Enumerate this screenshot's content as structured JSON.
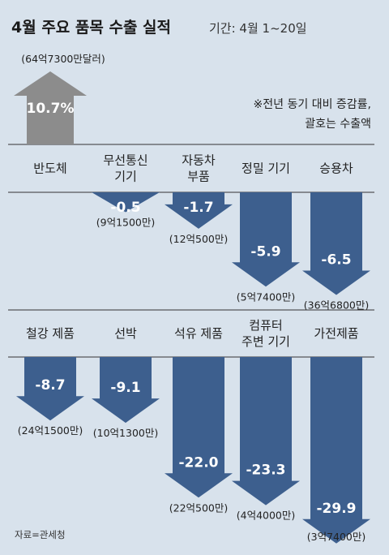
{
  "header": {
    "title": "4월 주요 품목 수출 실적",
    "period": "기간: 4월 1~20일"
  },
  "note": {
    "line1": "※전년 동기 대비 증감률,",
    "line2": "괄호는 수출액"
  },
  "source": "자료=관세청",
  "colors": {
    "background": "#d8e2ec",
    "negative_arrow": "#3d5f8e",
    "positive_arrow": "#8c8c8c"
  },
  "chart_data": [
    {
      "type": "bar",
      "orientation": "arrows",
      "unit": "%",
      "categories": [
        [
          "반도체"
        ],
        [
          "무선통신",
          "기기"
        ],
        [
          "자동차",
          "부품"
        ],
        [
          "정밀 기기"
        ],
        [
          "승용차"
        ]
      ],
      "values": [
        10.7,
        -0.5,
        -1.7,
        -5.9,
        -6.5
      ],
      "value_labels": [
        "10.7%",
        "-0.5",
        "-1.7",
        "-5.9",
        "-6.5"
      ],
      "export_amounts": [
        "(64억7300만달러)",
        "(9억1500만)",
        "(12억500만)",
        "(5억7400만)",
        "(36억6800만)"
      ]
    },
    {
      "type": "bar",
      "orientation": "arrows",
      "unit": "%",
      "categories": [
        [
          "철강 제품"
        ],
        [
          "선박"
        ],
        [
          "석유 제품"
        ],
        [
          "컴퓨터",
          "주변 기기"
        ],
        [
          "가전제품"
        ]
      ],
      "values": [
        -8.7,
        -9.1,
        -22.0,
        -23.3,
        -29.9
      ],
      "value_labels": [
        "-8.7",
        "-9.1",
        "-22.0",
        "-23.3",
        "-29.9"
      ],
      "export_amounts": [
        "(24억1500만)",
        "(10억1300만)",
        "(22억500만)",
        "(4억4000만)",
        "(3억7400만)"
      ]
    }
  ]
}
